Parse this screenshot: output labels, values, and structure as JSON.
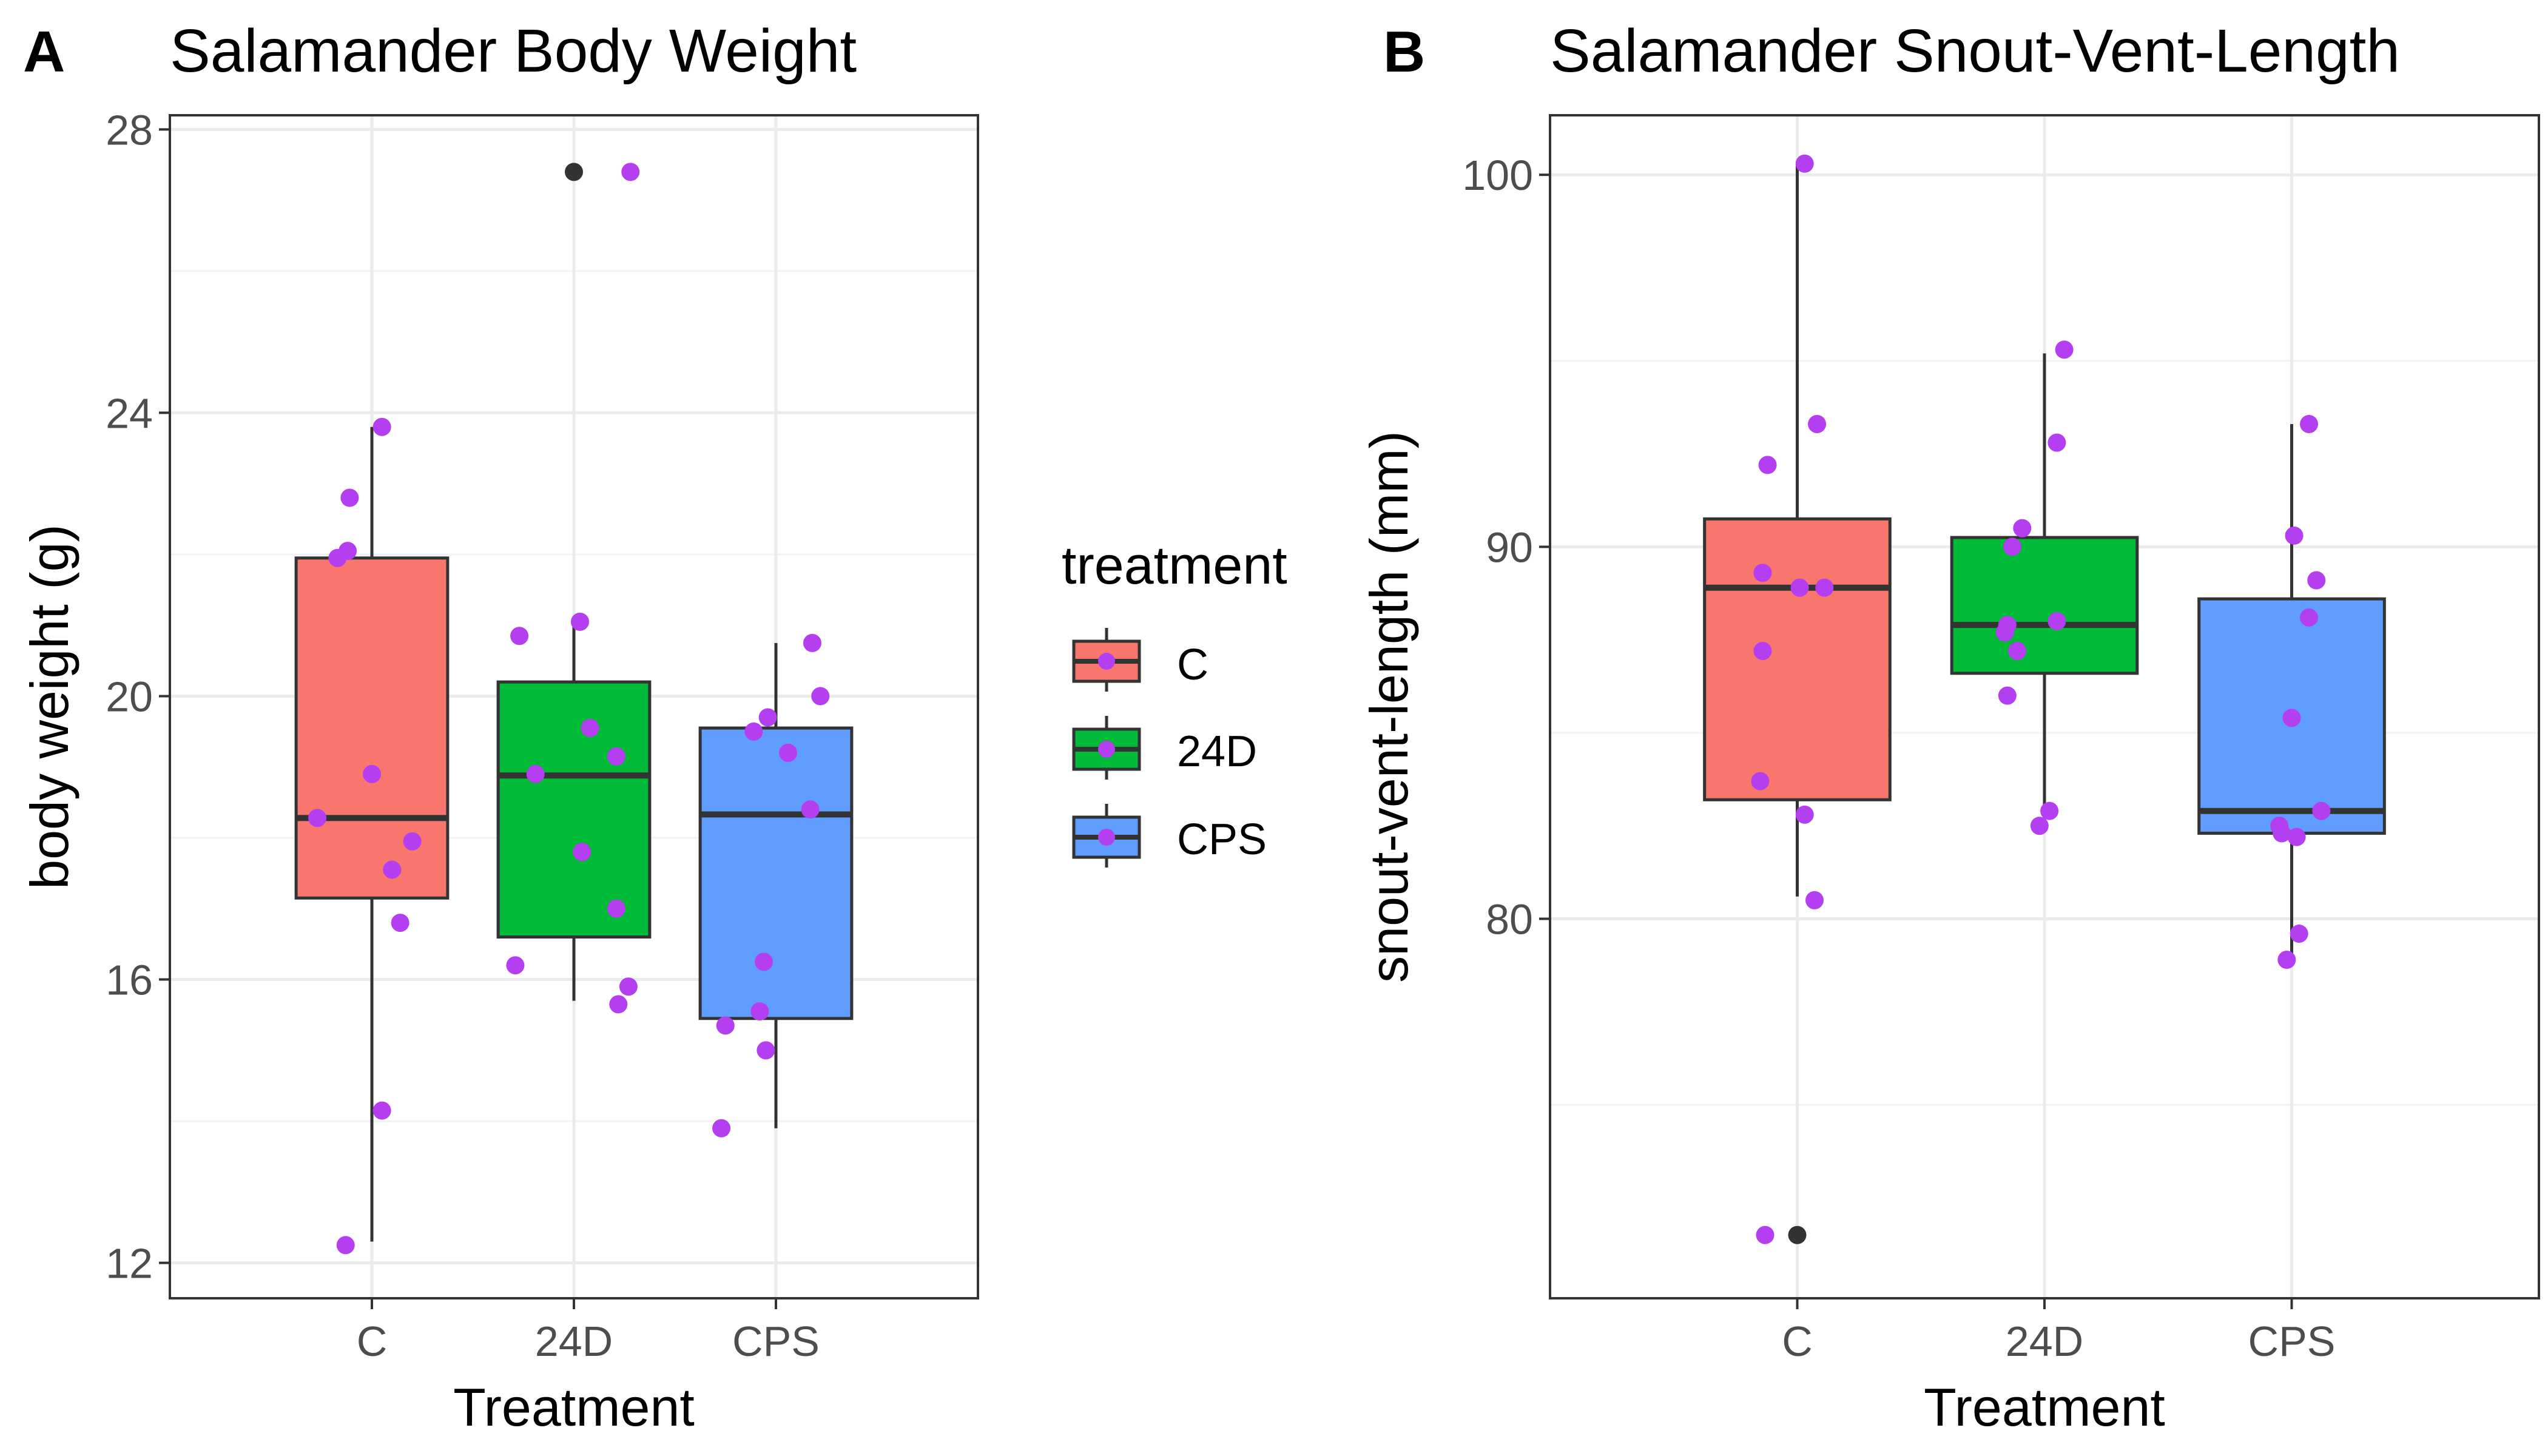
{
  "legend": {
    "title": "treatment",
    "entries": [
      {
        "label": "C",
        "color": "#F8766D"
      },
      {
        "label": "24D",
        "color": "#00BA38"
      },
      {
        "label": "CPS",
        "color": "#619CFF"
      }
    ],
    "placement": "right of panel A"
  },
  "chart_data": [
    {
      "type": "box",
      "panel_label": "A",
      "title": "Salamander Body Weight",
      "xlabel": "Treatment",
      "ylabel": "body weight (g)",
      "categories": [
        "C",
        "24D",
        "CPS"
      ],
      "colors": [
        "#F8766D",
        "#00BA38",
        "#619CFF"
      ],
      "point_color": "#B43FF0",
      "ylim": [
        11.5,
        28.2
      ],
      "yticks": [
        12,
        16,
        20,
        24,
        28
      ],
      "grid": true,
      "boxes": [
        {
          "q1": 17.15,
          "median": 18.28,
          "q3": 21.95,
          "whisker_low": 12.3,
          "whisker_high": 23.8,
          "outliers": []
        },
        {
          "q1": 16.6,
          "median": 18.88,
          "q3": 20.2,
          "whisker_low": 15.7,
          "whisker_high": 21.0,
          "outliers": [
            27.4
          ]
        },
        {
          "q1": 15.45,
          "median": 18.33,
          "q3": 19.55,
          "whisker_low": 13.9,
          "whisker_high": 20.75,
          "outliers": []
        }
      ],
      "points": [
        [
          {
            "jitter": 0.05,
            "y": 23.8
          },
          {
            "jitter": -0.11,
            "y": 22.8
          },
          {
            "jitter": -0.17,
            "y": 21.95
          },
          {
            "jitter": -0.12,
            "y": 22.05
          },
          {
            "jitter": 0.0,
            "y": 18.9
          },
          {
            "jitter": -0.27,
            "y": 18.28
          },
          {
            "jitter": 0.2,
            "y": 17.95
          },
          {
            "jitter": 0.1,
            "y": 17.55
          },
          {
            "jitter": 0.14,
            "y": 16.8
          },
          {
            "jitter": 0.05,
            "y": 14.15
          },
          {
            "jitter": -0.13,
            "y": 12.25
          }
        ],
        [
          {
            "jitter": 0.28,
            "y": 27.4
          },
          {
            "jitter": 0.03,
            "y": 21.05
          },
          {
            "jitter": -0.27,
            "y": 20.85
          },
          {
            "jitter": 0.08,
            "y": 19.55
          },
          {
            "jitter": 0.21,
            "y": 19.15
          },
          {
            "jitter": -0.19,
            "y": 18.9
          },
          {
            "jitter": 0.04,
            "y": 17.8
          },
          {
            "jitter": 0.21,
            "y": 17.0
          },
          {
            "jitter": -0.29,
            "y": 16.2
          },
          {
            "jitter": 0.27,
            "y": 15.9
          },
          {
            "jitter": 0.22,
            "y": 15.65
          }
        ],
        [
          {
            "jitter": 0.18,
            "y": 20.75
          },
          {
            "jitter": 0.22,
            "y": 20.0
          },
          {
            "jitter": -0.04,
            "y": 19.7
          },
          {
            "jitter": -0.11,
            "y": 19.5
          },
          {
            "jitter": 0.06,
            "y": 19.2
          },
          {
            "jitter": 0.17,
            "y": 18.4
          },
          {
            "jitter": -0.06,
            "y": 16.25
          },
          {
            "jitter": -0.08,
            "y": 15.55
          },
          {
            "jitter": -0.25,
            "y": 15.35
          },
          {
            "jitter": -0.05,
            "y": 15.0
          },
          {
            "jitter": -0.27,
            "y": 13.9
          }
        ]
      ]
    },
    {
      "type": "box",
      "panel_label": "B",
      "title": "Salamander Snout-Vent-Length",
      "xlabel": "Treatment",
      "ylabel": "snout-vent-length (mm)",
      "categories": [
        "C",
        "24D",
        "CPS"
      ],
      "colors": [
        "#F8766D",
        "#00BA38",
        "#619CFF"
      ],
      "point_color": "#B43FF0",
      "ylim": [
        69.8,
        101.6
      ],
      "yticks": [
        80,
        90,
        100
      ],
      "grid": true,
      "boxes": [
        {
          "q1": 83.2,
          "median": 88.9,
          "q3": 90.75,
          "whisker_low": 80.6,
          "whisker_high": 100.3,
          "outliers": [
            71.5
          ]
        },
        {
          "q1": 86.6,
          "median": 87.9,
          "q3": 90.25,
          "whisker_low": 82.6,
          "whisker_high": 95.2,
          "outliers": []
        },
        {
          "q1": 82.3,
          "median": 82.9,
          "q3": 88.6,
          "whisker_low": 78.9,
          "whisker_high": 93.3,
          "outliers": []
        }
      ],
      "points": [
        [
          {
            "jitter": 0.03,
            "y": 100.3
          },
          {
            "jitter": 0.08,
            "y": 93.3
          },
          {
            "jitter": -0.12,
            "y": 92.2
          },
          {
            "jitter": -0.14,
            "y": 89.3
          },
          {
            "jitter": 0.01,
            "y": 88.9
          },
          {
            "jitter": 0.11,
            "y": 88.9
          },
          {
            "jitter": -0.14,
            "y": 87.2
          },
          {
            "jitter": -0.15,
            "y": 83.7
          },
          {
            "jitter": 0.03,
            "y": 82.8
          },
          {
            "jitter": 0.07,
            "y": 80.5
          },
          {
            "jitter": -0.13,
            "y": 71.5
          }
        ],
        [
          {
            "jitter": 0.08,
            "y": 95.3
          },
          {
            "jitter": 0.05,
            "y": 92.8
          },
          {
            "jitter": -0.09,
            "y": 90.5
          },
          {
            "jitter": -0.13,
            "y": 90.0
          },
          {
            "jitter": 0.05,
            "y": 88.0
          },
          {
            "jitter": -0.15,
            "y": 87.9
          },
          {
            "jitter": -0.16,
            "y": 87.7
          },
          {
            "jitter": -0.11,
            "y": 87.2
          },
          {
            "jitter": -0.15,
            "y": 86.0
          },
          {
            "jitter": 0.02,
            "y": 82.9
          },
          {
            "jitter": -0.02,
            "y": 82.5
          }
        ],
        [
          {
            "jitter": 0.07,
            "y": 93.3
          },
          {
            "jitter": 0.01,
            "y": 90.3
          },
          {
            "jitter": 0.1,
            "y": 89.1
          },
          {
            "jitter": 0.07,
            "y": 88.1
          },
          {
            "jitter": 0.0,
            "y": 85.4
          },
          {
            "jitter": 0.12,
            "y": 82.9
          },
          {
            "jitter": -0.05,
            "y": 82.5
          },
          {
            "jitter": -0.04,
            "y": 82.3
          },
          {
            "jitter": 0.02,
            "y": 82.2
          },
          {
            "jitter": 0.03,
            "y": 79.6
          },
          {
            "jitter": -0.02,
            "y": 78.9
          }
        ]
      ]
    }
  ]
}
